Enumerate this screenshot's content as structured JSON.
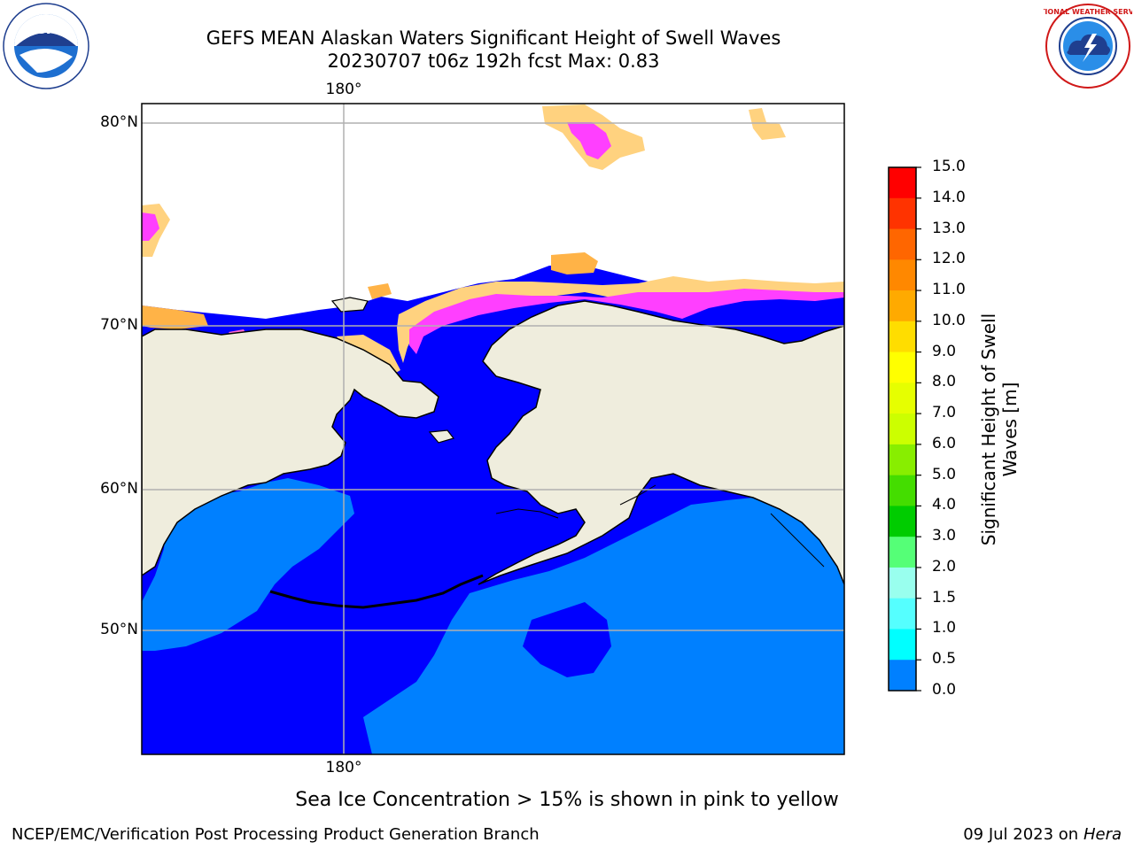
{
  "title": {
    "line1": "GEFS MEAN Alaskan Waters Significant Height of Swell Waves",
    "line2": "20230707 t06z 192h fcst   Max: 0.83"
  },
  "logos": {
    "left": "noara-logo",
    "left_text": "NOAA",
    "right": "national-weather-service-logo",
    "right_text": "NATIONAL WEATHER SERVICE"
  },
  "map": {
    "lat_labels": [
      "80°N",
      "70°N",
      "60°N",
      "50°N"
    ],
    "lon_top": "180°",
    "lon_bottom": "180°",
    "colors": {
      "land": "#efeddd",
      "ocean_deep": "#0000ff",
      "ocean_light": "#0080ff",
      "ice_pink": "#ff3fff",
      "ice_orange": "#ffb347",
      "ice_yellow": "#ffd27f"
    }
  },
  "colorbar": {
    "label": "Significant Height of Swell Waves [m]",
    "ticks": [
      "15.0",
      "14.0",
      "13.0",
      "12.0",
      "11.0",
      "10.0",
      "9.0",
      "8.0",
      "7.0",
      "6.0",
      "5.0",
      "4.0",
      "3.0",
      "2.0",
      "1.5",
      "1.0",
      "0.5",
      "0.0"
    ],
    "colors": [
      "#ff0000",
      "#ff3300",
      "#ff6600",
      "#ff8800",
      "#ffaa00",
      "#ffdd00",
      "#ffff00",
      "#e6ff00",
      "#ccff00",
      "#88ee00",
      "#44dd00",
      "#00cc00",
      "#55ff77",
      "#99ffee",
      "#55ffff",
      "#00ffff",
      "#0080ff",
      "#0000ff"
    ]
  },
  "note": "Sea Ice Concentration > 15% is shown in pink to yellow",
  "footer": {
    "left": "NCEP/EMC/Verification Post Processing Product Generation Branch",
    "right_date": "09 Jul 2023 on",
    "right_host": "Hera"
  }
}
